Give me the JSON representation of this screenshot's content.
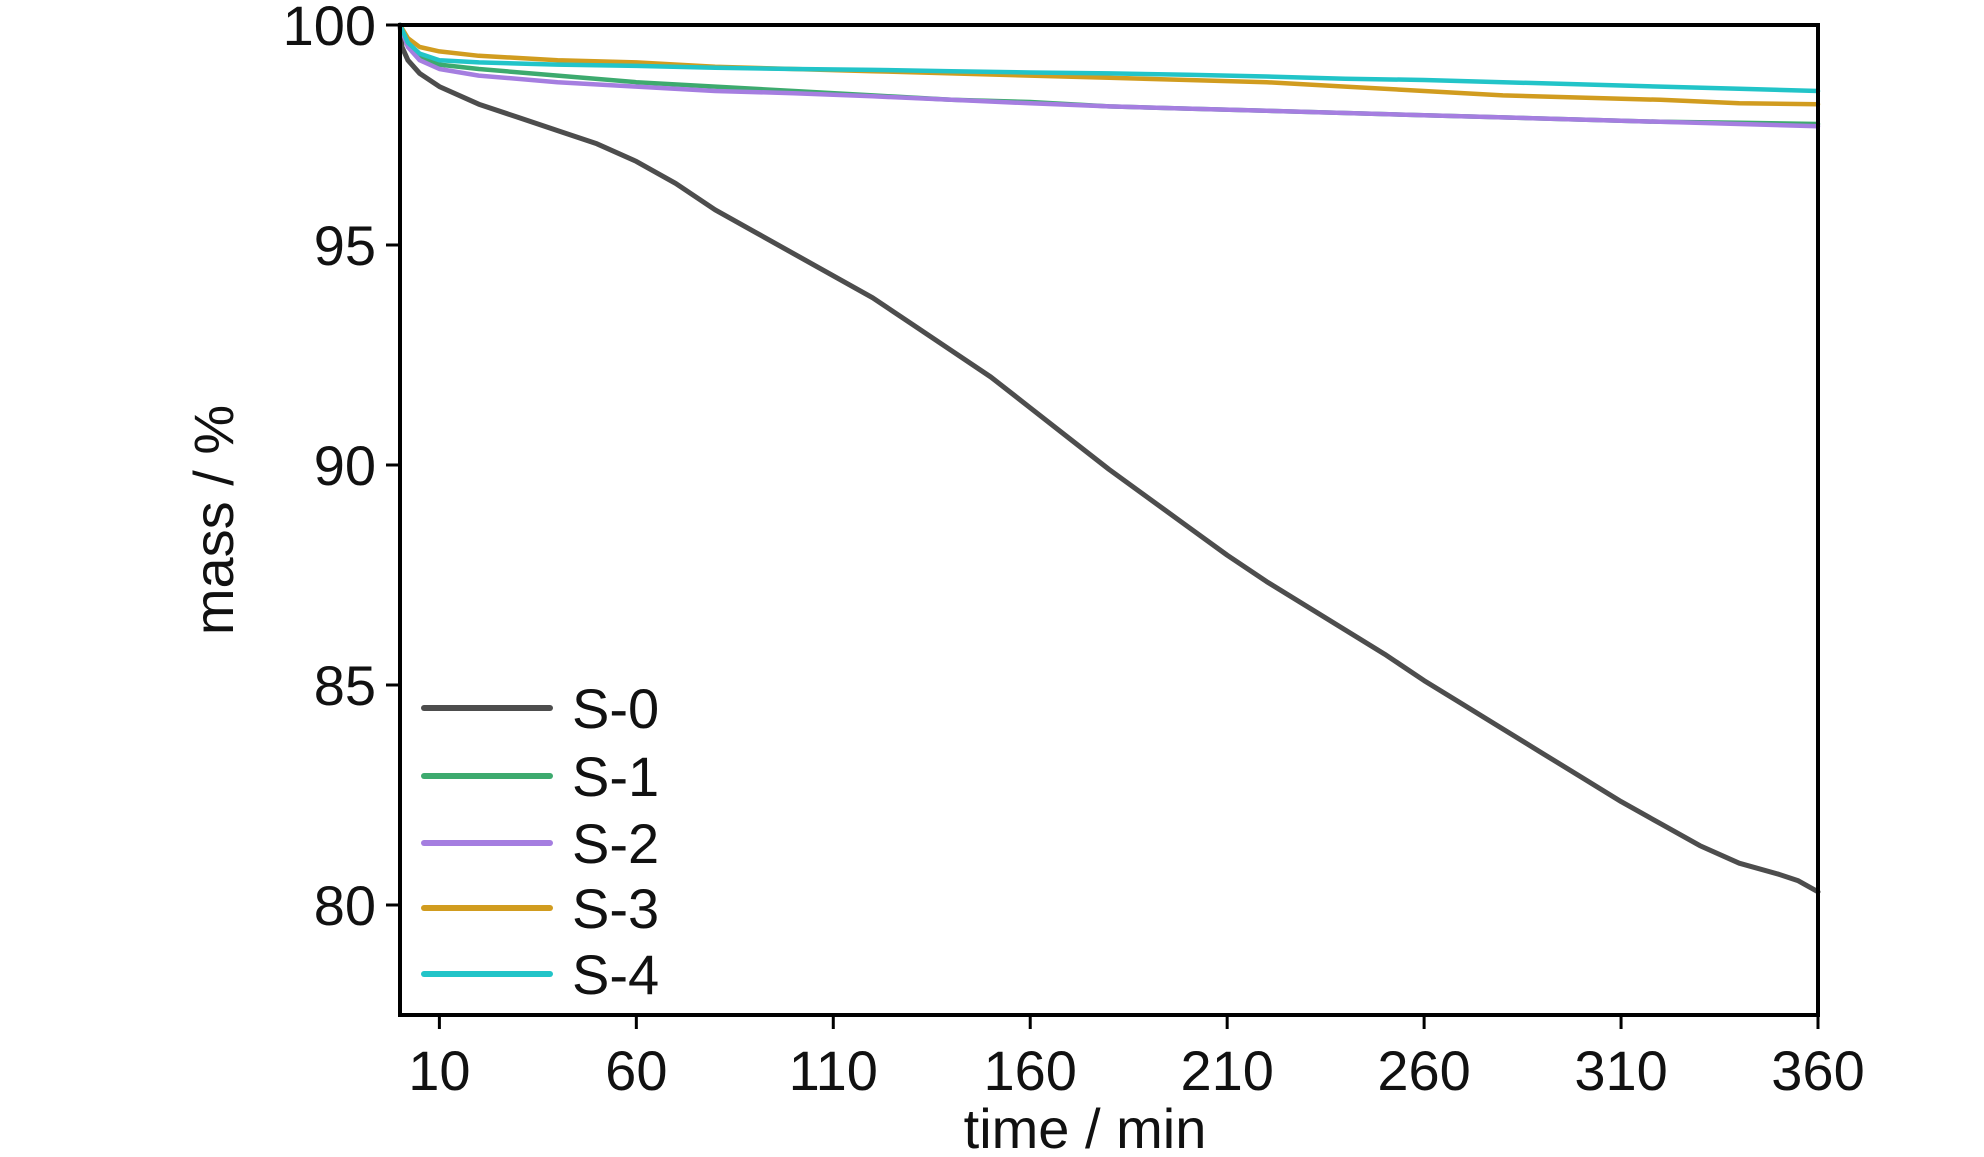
{
  "chart_data": {
    "type": "line",
    "title": "",
    "xlabel": "time / min",
    "ylabel": "mass / %",
    "xlim": [
      0,
      360
    ],
    "ylim": [
      77.5,
      100
    ],
    "xticks": [
      10,
      60,
      110,
      160,
      210,
      260,
      310,
      360
    ],
    "yticks": [
      80,
      85,
      90,
      95,
      100
    ],
    "grid": false,
    "legend_position": "bottom-left",
    "series": [
      {
        "name": "S-0",
        "color": "#4d4d4d",
        "points": [
          [
            0,
            100
          ],
          [
            0.5,
            99.5
          ],
          [
            2,
            99.2
          ],
          [
            5,
            98.9
          ],
          [
            10,
            98.6
          ],
          [
            20,
            98.2
          ],
          [
            30,
            97.9
          ],
          [
            40,
            97.6
          ],
          [
            50,
            97.3
          ],
          [
            60,
            96.9
          ],
          [
            70,
            96.4
          ],
          [
            80,
            95.8
          ],
          [
            90,
            95.3
          ],
          [
            100,
            94.8
          ],
          [
            110,
            94.3
          ],
          [
            120,
            93.8
          ],
          [
            130,
            93.2
          ],
          [
            140,
            92.6
          ],
          [
            150,
            92.0
          ],
          [
            160,
            91.3
          ],
          [
            170,
            90.6
          ],
          [
            180,
            89.9
          ],
          [
            190,
            89.25
          ],
          [
            200,
            88.6
          ],
          [
            210,
            87.95
          ],
          [
            220,
            87.35
          ],
          [
            230,
            86.8
          ],
          [
            240,
            86.25
          ],
          [
            250,
            85.7
          ],
          [
            260,
            85.1
          ],
          [
            270,
            84.55
          ],
          [
            280,
            84.0
          ],
          [
            290,
            83.45
          ],
          [
            300,
            82.9
          ],
          [
            310,
            82.35
          ],
          [
            320,
            81.85
          ],
          [
            330,
            81.35
          ],
          [
            340,
            80.95
          ],
          [
            350,
            80.7
          ],
          [
            355,
            80.55
          ],
          [
            360,
            80.3
          ]
        ]
      },
      {
        "name": "S-1",
        "color": "#3daa6e",
        "points": [
          [
            0,
            100
          ],
          [
            2,
            99.6
          ],
          [
            5,
            99.3
          ],
          [
            10,
            99.1
          ],
          [
            20,
            99.0
          ],
          [
            40,
            98.85
          ],
          [
            60,
            98.7
          ],
          [
            80,
            98.6
          ],
          [
            100,
            98.5
          ],
          [
            120,
            98.4
          ],
          [
            140,
            98.3
          ],
          [
            160,
            98.25
          ],
          [
            180,
            98.15
          ],
          [
            200,
            98.1
          ],
          [
            220,
            98.05
          ],
          [
            240,
            98.0
          ],
          [
            260,
            97.95
          ],
          [
            280,
            97.9
          ],
          [
            300,
            97.85
          ],
          [
            320,
            97.8
          ],
          [
            340,
            97.78
          ],
          [
            360,
            97.75
          ]
        ]
      },
      {
        "name": "S-2",
        "color": "#a57ee0",
        "points": [
          [
            0,
            100
          ],
          [
            2,
            99.5
          ],
          [
            5,
            99.2
          ],
          [
            10,
            99.0
          ],
          [
            20,
            98.85
          ],
          [
            40,
            98.7
          ],
          [
            60,
            98.6
          ],
          [
            80,
            98.5
          ],
          [
            100,
            98.45
          ],
          [
            120,
            98.38
          ],
          [
            140,
            98.3
          ],
          [
            160,
            98.22
          ],
          [
            180,
            98.15
          ],
          [
            200,
            98.1
          ],
          [
            220,
            98.05
          ],
          [
            240,
            98.0
          ],
          [
            260,
            97.95
          ],
          [
            280,
            97.9
          ],
          [
            300,
            97.85
          ],
          [
            320,
            97.8
          ],
          [
            340,
            97.75
          ],
          [
            360,
            97.7
          ]
        ]
      },
      {
        "name": "S-3",
        "color": "#d19c1f",
        "points": [
          [
            0,
            100
          ],
          [
            2,
            99.7
          ],
          [
            5,
            99.5
          ],
          [
            10,
            99.4
          ],
          [
            20,
            99.3
          ],
          [
            40,
            99.2
          ],
          [
            60,
            99.15
          ],
          [
            80,
            99.05
          ],
          [
            100,
            99.0
          ],
          [
            120,
            98.95
          ],
          [
            140,
            98.9
          ],
          [
            160,
            98.85
          ],
          [
            180,
            98.8
          ],
          [
            200,
            98.75
          ],
          [
            220,
            98.7
          ],
          [
            240,
            98.6
          ],
          [
            260,
            98.5
          ],
          [
            280,
            98.4
          ],
          [
            300,
            98.35
          ],
          [
            320,
            98.3
          ],
          [
            340,
            98.22
          ],
          [
            360,
            98.2
          ]
        ]
      },
      {
        "name": "S-4",
        "color": "#22c4c8",
        "points": [
          [
            0,
            100
          ],
          [
            2,
            99.6
          ],
          [
            5,
            99.35
          ],
          [
            10,
            99.2
          ],
          [
            20,
            99.15
          ],
          [
            40,
            99.1
          ],
          [
            60,
            99.07
          ],
          [
            80,
            99.03
          ],
          [
            100,
            99.0
          ],
          [
            120,
            98.98
          ],
          [
            140,
            98.95
          ],
          [
            160,
            98.92
          ],
          [
            180,
            98.9
          ],
          [
            200,
            98.87
          ],
          [
            220,
            98.83
          ],
          [
            240,
            98.78
          ],
          [
            260,
            98.75
          ],
          [
            280,
            98.7
          ],
          [
            300,
            98.65
          ],
          [
            320,
            98.6
          ],
          [
            340,
            98.55
          ],
          [
            360,
            98.5
          ]
        ]
      }
    ]
  }
}
